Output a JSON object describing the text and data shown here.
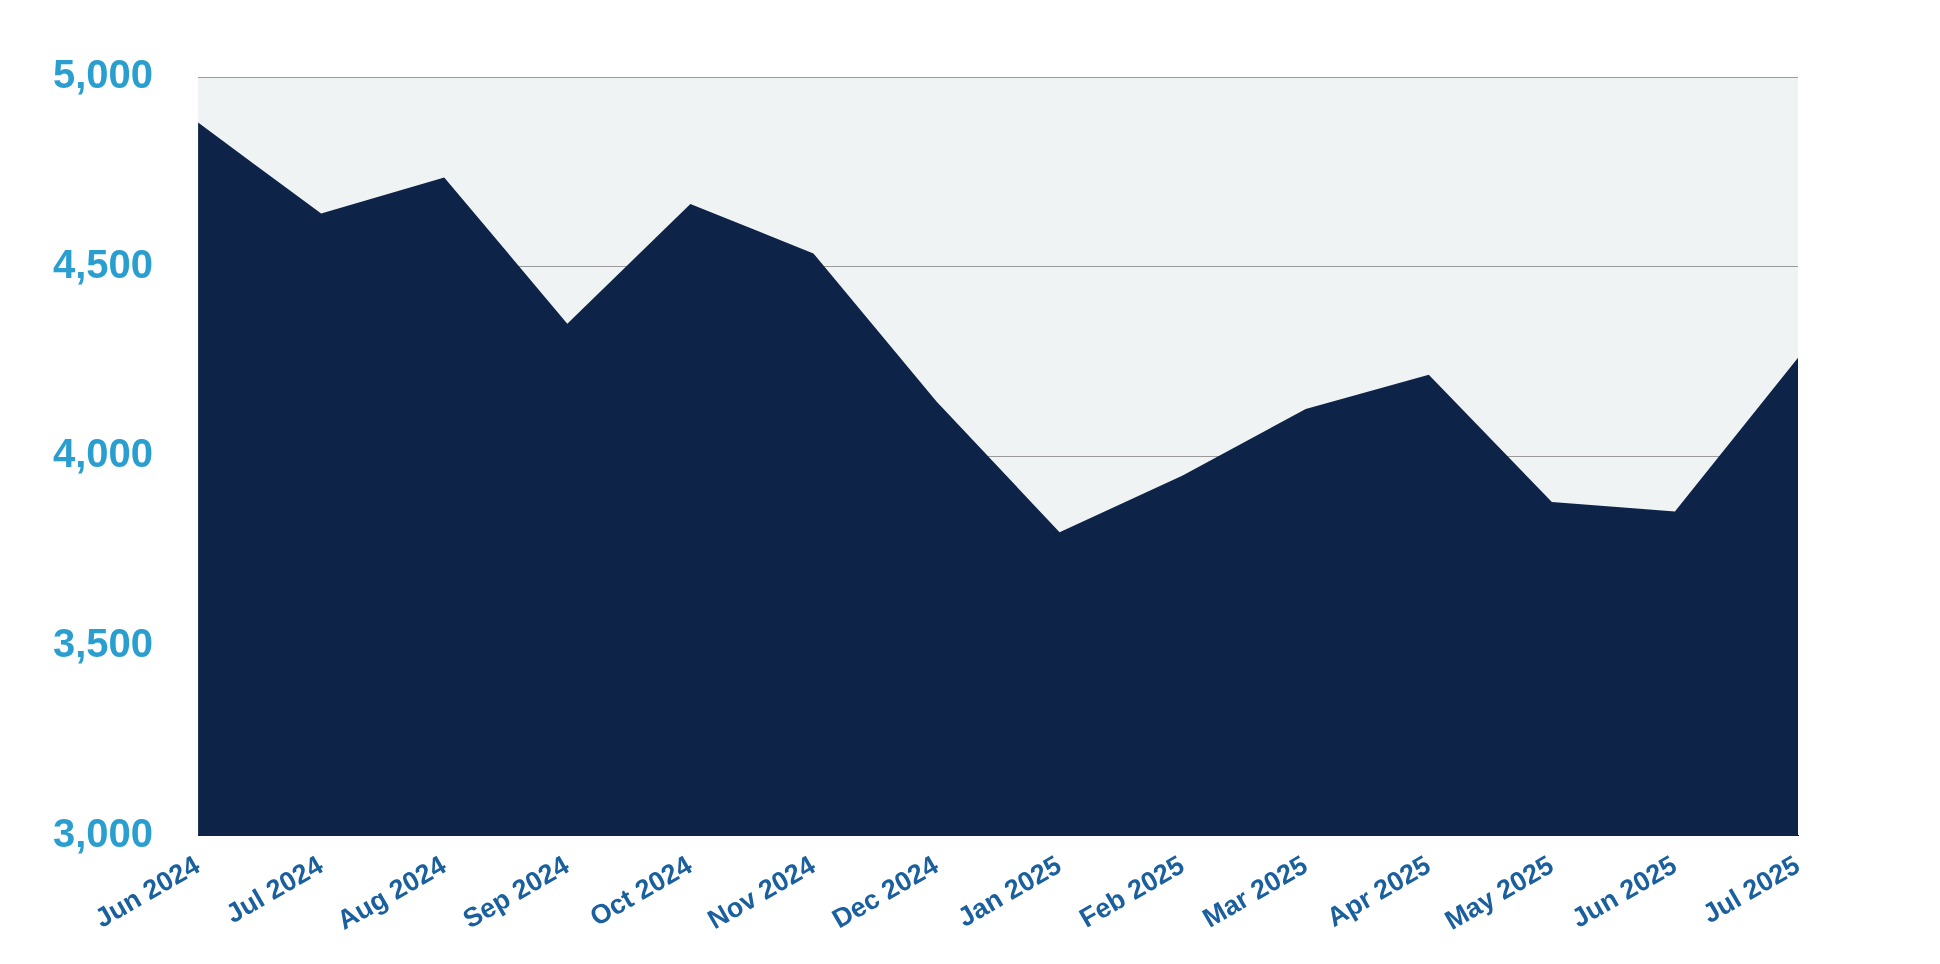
{
  "chart_data": {
    "type": "area",
    "categories": [
      "Jun 2024",
      "Jul 2024",
      "Aug 2024",
      "Sep 2024",
      "Oct 2024",
      "Nov 2024",
      "Dec 2024",
      "Jan 2025",
      "Feb 2025",
      "Mar 2025",
      "Apr 2025",
      "May 2025",
      "Jun 2025",
      "Jul 2025"
    ],
    "series": [
      {
        "color": "#0e2348",
        "values": [
          4880,
          4640,
          4735,
          4350,
          4665,
          4535,
          4145,
          3800,
          3950,
          4125,
          4215,
          3880,
          3855,
          4260
        ]
      }
    ],
    "ylim": [
      3000,
      5000
    ],
    "yticks": [
      {
        "value": 3000,
        "label": "3,000"
      },
      {
        "value": 3500,
        "label": "3,500"
      },
      {
        "value": 4000,
        "label": "4,000"
      },
      {
        "value": 4500,
        "label": "4,500"
      },
      {
        "value": 5000,
        "label": "5,000"
      }
    ],
    "grid": "y",
    "legend": false,
    "marker": "none"
  }
}
